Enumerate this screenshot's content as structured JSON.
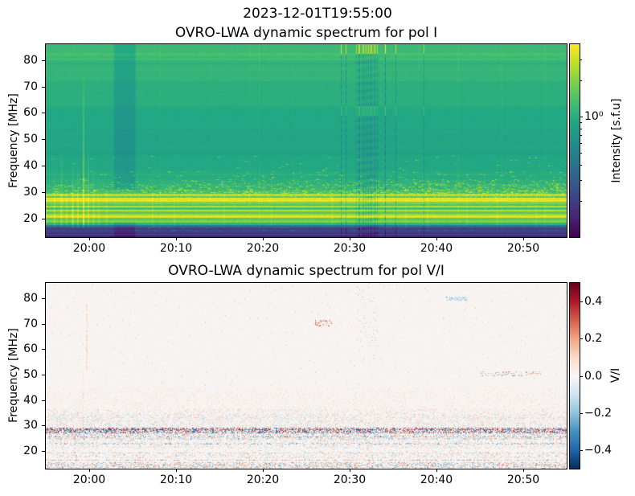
{
  "suptitle": "2023-12-01T19:55:00",
  "chart_data": [
    {
      "type": "heatmap",
      "title": "OVRO-LWA dynamic spectrum for pol I",
      "ylabel": "Frequency [MHz]",
      "x_axis": {
        "start_time": "19:55",
        "end_time": "20:55",
        "range_minutes": [
          0,
          60
        ],
        "ticks": [
          {
            "label": "20:00",
            "minute": 5
          },
          {
            "label": "20:10",
            "minute": 15
          },
          {
            "label": "20:20",
            "minute": 25
          },
          {
            "label": "20:30",
            "minute": 35
          },
          {
            "label": "20:40",
            "minute": 45
          },
          {
            "label": "20:50",
            "minute": 55
          }
        ]
      },
      "y_axis": {
        "range_mhz": [
          13,
          86
        ],
        "ticks": [
          20,
          30,
          40,
          50,
          60,
          70,
          80
        ]
      },
      "colormap": "viridis",
      "scale": "log",
      "colorbar": {
        "label": "Intensity [s.f.u]",
        "range": [
          0.1,
          4.0
        ],
        "ticks": [
          {
            "label": "10⁰",
            "value": 1.0
          }
        ],
        "minor_tick_values": [
          0.2,
          0.3,
          0.4,
          0.5,
          0.6,
          0.7,
          0.8,
          0.9,
          2.0,
          3.0
        ]
      },
      "seed": 7,
      "background_bands": [
        [
          80,
          86.5,
          0.68,
          0.018,
          0
        ],
        [
          72,
          80,
          0.655,
          0.012,
          0
        ],
        [
          62,
          72,
          0.63,
          0.01,
          0
        ],
        [
          52,
          62,
          0.6,
          0.009,
          0
        ],
        [
          44,
          52,
          0.585,
          0.01,
          0
        ],
        [
          38,
          44,
          0.6,
          0.014,
          0.004
        ],
        [
          35,
          38,
          0.615,
          0.02,
          0.01
        ],
        [
          33,
          35,
          0.635,
          0.035,
          0.03
        ],
        [
          31,
          33,
          0.66,
          0.05,
          0.05
        ],
        [
          29.5,
          31,
          0.7,
          0.07,
          0.08
        ],
        [
          28.6,
          29.5,
          0.9,
          0.05,
          0
        ],
        [
          27.8,
          28.6,
          0.74,
          0.045,
          0
        ],
        [
          26.3,
          27.8,
          0.96,
          0.03,
          0
        ],
        [
          25.6,
          26.3,
          0.8,
          0.04,
          0
        ],
        [
          24.9,
          25.6,
          0.72,
          0.04,
          0
        ],
        [
          24.2,
          24.9,
          0.9,
          0.03,
          0
        ],
        [
          23.4,
          24.2,
          0.7,
          0.03,
          0
        ],
        [
          22.6,
          23.4,
          0.9,
          0.03,
          0
        ],
        [
          21.9,
          22.6,
          0.74,
          0.03,
          0
        ],
        [
          21.2,
          21.9,
          0.85,
          0.03,
          0
        ],
        [
          20.2,
          21.2,
          0.95,
          0.025,
          0
        ],
        [
          19.5,
          20.2,
          0.74,
          0.03,
          0
        ],
        [
          18.4,
          19.5,
          0.8,
          0.035,
          0
        ],
        [
          17.6,
          18.4,
          0.64,
          0.035,
          0
        ],
        [
          17.0,
          17.6,
          0.4,
          0.035,
          0
        ],
        [
          16.4,
          17.0,
          0.26,
          0.025,
          0.02
        ],
        [
          15.8,
          16.4,
          0.17,
          0.02,
          0
        ],
        [
          15.0,
          15.8,
          0.22,
          0.02,
          0.02
        ],
        [
          14.2,
          15.0,
          0.16,
          0.018,
          0
        ],
        [
          13.6,
          14.2,
          0.2,
          0.018,
          0
        ],
        [
          12.8,
          13.6,
          0.09,
          0.015,
          0
        ]
      ],
      "thin_lines": [
        [
          82.2,
          0.03
        ],
        [
          80.3,
          0.02
        ],
        [
          78.8,
          -0.025
        ],
        [
          76.5,
          0.015
        ],
        [
          62.5,
          -0.018
        ],
        [
          53.5,
          -0.018
        ],
        [
          47.5,
          0.012
        ],
        [
          44.5,
          -0.02
        ],
        [
          36.8,
          0.02
        ]
      ],
      "streaks": [
        [
          1.0,
          38,
          0.1
        ],
        [
          1.8,
          48,
          0.1
        ],
        [
          2.4,
          36,
          0.08
        ],
        [
          3.1,
          42,
          0.14
        ],
        [
          3.7,
          40,
          0.1
        ],
        [
          4.35,
          76,
          0.2
        ],
        [
          4.9,
          50,
          0.1
        ],
        [
          5.5,
          42,
          0.08
        ],
        [
          6.1,
          36,
          0.07
        ],
        [
          7.0,
          34,
          0.06
        ],
        [
          12.3,
          40,
          0.06
        ],
        [
          14.8,
          36,
          0.05
        ],
        [
          20.5,
          34,
          0.04
        ],
        [
          26.0,
          35,
          0.05
        ],
        [
          33.0,
          36,
          0.05
        ],
        [
          41.5,
          34,
          0.05
        ],
        [
          44.0,
          36,
          0.06
        ],
        [
          48.5,
          34,
          0.05
        ],
        [
          52.0,
          35,
          0.05
        ],
        [
          56.5,
          34,
          0.05
        ]
      ],
      "faint_columns": [
        [
          13.2,
          0.02
        ],
        [
          19.0,
          0.018
        ],
        [
          23.5,
          0.022
        ],
        [
          24.6,
          0.03
        ],
        [
          28.5,
          0.015
        ],
        [
          43.0,
          0.02
        ],
        [
          47.5,
          0.02
        ],
        [
          52.5,
          0.018
        ],
        [
          57.5,
          0.02
        ]
      ],
      "teal_stripe": {
        "m0": 8.0,
        "m1": 10.2,
        "delta": -0.075,
        "base_max": 0.7
      },
      "rfi_cluster": {
        "m0": 35.8,
        "m1": 38.2,
        "n_lines": 13,
        "depth": 0.11
      },
      "extra_dark_lines": [
        [
          34.0,
          0.1
        ],
        [
          34.6,
          0.08
        ],
        [
          39.1,
          0.12
        ],
        [
          40.3,
          0.08
        ],
        [
          43.6,
          0.06
        ]
      ],
      "right_patches": {
        "f_lo": 28,
        "f_hi": 34.5,
        "prob": 0.05,
        "boost": 0.18
      }
    },
    {
      "type": "heatmap",
      "title": "OVRO-LWA dynamic spectrum for pol V/I",
      "ylabel": "Frequency [MHz]",
      "x_axis": {
        "start_time": "19:55",
        "end_time": "20:55",
        "range_minutes": [
          0,
          60
        ],
        "ticks": [
          {
            "label": "20:00",
            "minute": 5
          },
          {
            "label": "20:10",
            "minute": 15
          },
          {
            "label": "20:20",
            "minute": 25
          },
          {
            "label": "20:30",
            "minute": 35
          },
          {
            "label": "20:40",
            "minute": 45
          },
          {
            "label": "20:50",
            "minute": 55
          }
        ]
      },
      "y_axis": {
        "range_mhz": [
          13,
          86
        ],
        "ticks": [
          20,
          30,
          40,
          50,
          60,
          70,
          80
        ]
      },
      "colormap": "RdBu_r",
      "scale": "linear",
      "colorbar": {
        "label": "V/I",
        "range": [
          -0.5,
          0.5
        ],
        "ticks": [
          {
            "label": "0.4",
            "value": 0.4
          },
          {
            "label": "0.2",
            "value": 0.2
          },
          {
            "label": "0.0",
            "value": 0.0
          },
          {
            "label": "−0.2",
            "value": -0.2
          },
          {
            "label": "−0.4",
            "value": -0.4
          }
        ]
      },
      "seed": 11,
      "background_value": 0.012,
      "noise_bands": [
        [
          45,
          86,
          0.006,
          0.2,
          0
        ],
        [
          36.5,
          45,
          0.18,
          0.1,
          0.03
        ],
        [
          34.5,
          36.5,
          0.3,
          0.16,
          0.02
        ],
        [
          29,
          34.5,
          0.45,
          0.16,
          0
        ],
        [
          27,
          29,
          0.78,
          0.42,
          0
        ],
        [
          24.5,
          27,
          0.5,
          0.25,
          -0.02
        ],
        [
          21,
          24.5,
          0.32,
          0.18,
          0
        ],
        [
          19.5,
          21,
          0.15,
          0.15,
          0
        ],
        [
          17,
          19.5,
          0.3,
          0.2,
          0
        ],
        [
          15.5,
          17,
          0.22,
          0.16,
          0
        ],
        [
          12.8,
          15.5,
          0.5,
          0.28,
          0
        ]
      ],
      "noise_lines": [
        [
          28.2,
          0.92,
          0.5,
          0
        ],
        [
          25.4,
          0.6,
          0.3,
          -0.08
        ],
        [
          22.8,
          0.5,
          0.25,
          -0.06
        ],
        [
          19.2,
          0.4,
          0.22,
          0
        ],
        [
          16.2,
          0.65,
          0.28,
          0
        ],
        [
          14.3,
          0.6,
          0.28,
          0
        ],
        [
          33.2,
          0.45,
          0.15,
          0.04
        ]
      ],
      "columns": [
        [
          4.7,
          52,
          78,
          0.55,
          0.1
        ],
        [
          4.3,
          28,
          52,
          0.45,
          0.08
        ]
      ],
      "spots": [
        [
          31,
          33,
          69,
          71.5,
          0.3,
          0.3,
          1
        ],
        [
          50,
          57,
          49.5,
          51.2,
          0.3,
          0.3,
          0
        ],
        [
          46,
          48.5,
          79,
          80.5,
          0.4,
          0.2,
          -1
        ],
        [
          35.8,
          38.2,
          55,
          86,
          0.06,
          0.2,
          0
        ]
      ]
    }
  ]
}
